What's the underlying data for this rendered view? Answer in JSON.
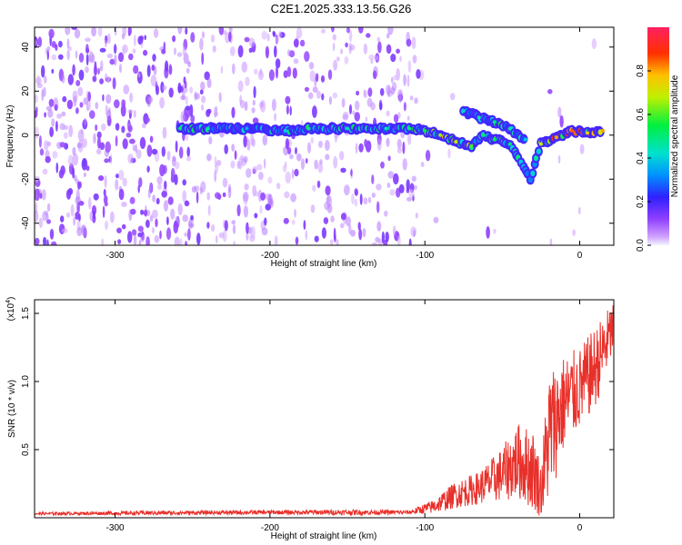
{
  "title": "C2E1.2025.333.13.56.G26",
  "chart_data": [
    {
      "type": "heatmap",
      "xlabel": "Height of straight line (km)",
      "ylabel": "Frequency (Hz)",
      "xlim": [
        -352,
        22
      ],
      "ylim": [
        -50,
        49
      ],
      "xticks": [
        -300,
        -200,
        -100,
        0
      ],
      "yticks": [
        -40,
        -20,
        0,
        20,
        40
      ],
      "colorbar": {
        "label": "Normalized spectral amplitude",
        "range": [
          0,
          1
        ],
        "ticks": [
          0.0,
          0.2,
          0.4,
          0.6,
          0.8
        ]
      },
      "signal_track": [
        {
          "x": -258,
          "y": 3,
          "amp": 0.5
        },
        {
          "x": -240,
          "y": 3,
          "amp": 0.45
        },
        {
          "x": -215,
          "y": 3,
          "amp": 0.35
        },
        {
          "x": -190,
          "y": 2,
          "amp": 0.4
        },
        {
          "x": -175,
          "y": 3,
          "amp": 0.5
        },
        {
          "x": -150,
          "y": 3,
          "amp": 0.45
        },
        {
          "x": -125,
          "y": 3,
          "amp": 0.45
        },
        {
          "x": -110,
          "y": 3,
          "amp": 0.5
        },
        {
          "x": -100,
          "y": 2,
          "amp": 0.55
        },
        {
          "x": -90,
          "y": 0,
          "amp": 0.65
        },
        {
          "x": -80,
          "y": -3,
          "amp": 0.7
        },
        {
          "x": -70,
          "y": -5,
          "amp": 0.6
        },
        {
          "x": -62,
          "y": 0,
          "amp": 0.5
        },
        {
          "x": -55,
          "y": -2,
          "amp": 0.55
        },
        {
          "x": -45,
          "y": -4,
          "amp": 0.5
        },
        {
          "x": -38,
          "y": -12,
          "amp": 0.4
        },
        {
          "x": -32,
          "y": -20,
          "amp": 0.3
        },
        {
          "x": -25,
          "y": -4,
          "amp": 0.7
        },
        {
          "x": -15,
          "y": -1,
          "amp": 0.8
        },
        {
          "x": -5,
          "y": 2,
          "amp": 0.85
        },
        {
          "x": 5,
          "y": 1,
          "amp": 0.75
        },
        {
          "x": 15,
          "y": 2,
          "amp": 0.8
        }
      ],
      "upper_branch": [
        {
          "x": -75,
          "y": 11,
          "amp": 0.4
        },
        {
          "x": -65,
          "y": 8,
          "amp": 0.45
        },
        {
          "x": -55,
          "y": 6,
          "amp": 0.5
        },
        {
          "x": -45,
          "y": 3,
          "amp": 0.45
        },
        {
          "x": -35,
          "y": -2,
          "amp": 0.4
        }
      ]
    },
    {
      "type": "line",
      "xlabel": "Height of straight line (km)",
      "ylabel": "SNR (10 * v/v)",
      "y_multiplier": "(x10",
      "y_multiplier_exp": "4",
      "y_multiplier_close": ")",
      "xlim": [
        -352,
        22
      ],
      "ylim": [
        0,
        1.6
      ],
      "xticks": [
        -300,
        -200,
        -100,
        0
      ],
      "yticks": [
        0.5,
        1.0,
        1.5
      ],
      "ytick_labels": [
        "0.5",
        "1.0",
        "1.5"
      ],
      "color": "#e8302a",
      "envelope": [
        {
          "x": -352,
          "mean": 0.03,
          "spread": 0.01
        },
        {
          "x": -280,
          "mean": 0.035,
          "spread": 0.015
        },
        {
          "x": -200,
          "mean": 0.04,
          "spread": 0.015
        },
        {
          "x": -150,
          "mean": 0.04,
          "spread": 0.02
        },
        {
          "x": -110,
          "mean": 0.04,
          "spread": 0.015
        },
        {
          "x": -95,
          "mean": 0.08,
          "spread": 0.05
        },
        {
          "x": -80,
          "mean": 0.17,
          "spread": 0.1
        },
        {
          "x": -65,
          "mean": 0.22,
          "spread": 0.12
        },
        {
          "x": -50,
          "mean": 0.32,
          "spread": 0.2
        },
        {
          "x": -40,
          "mean": 0.42,
          "spread": 0.28
        },
        {
          "x": -30,
          "mean": 0.35,
          "spread": 0.3
        },
        {
          "x": -25,
          "mean": 0.2,
          "spread": 0.2
        },
        {
          "x": -20,
          "mean": 0.6,
          "spread": 0.5
        },
        {
          "x": -10,
          "mean": 0.85,
          "spread": 0.35
        },
        {
          "x": 0,
          "mean": 0.95,
          "spread": 0.3
        },
        {
          "x": 10,
          "mean": 1.1,
          "spread": 0.3
        },
        {
          "x": 22,
          "mean": 1.4,
          "spread": 0.2
        }
      ]
    }
  ]
}
